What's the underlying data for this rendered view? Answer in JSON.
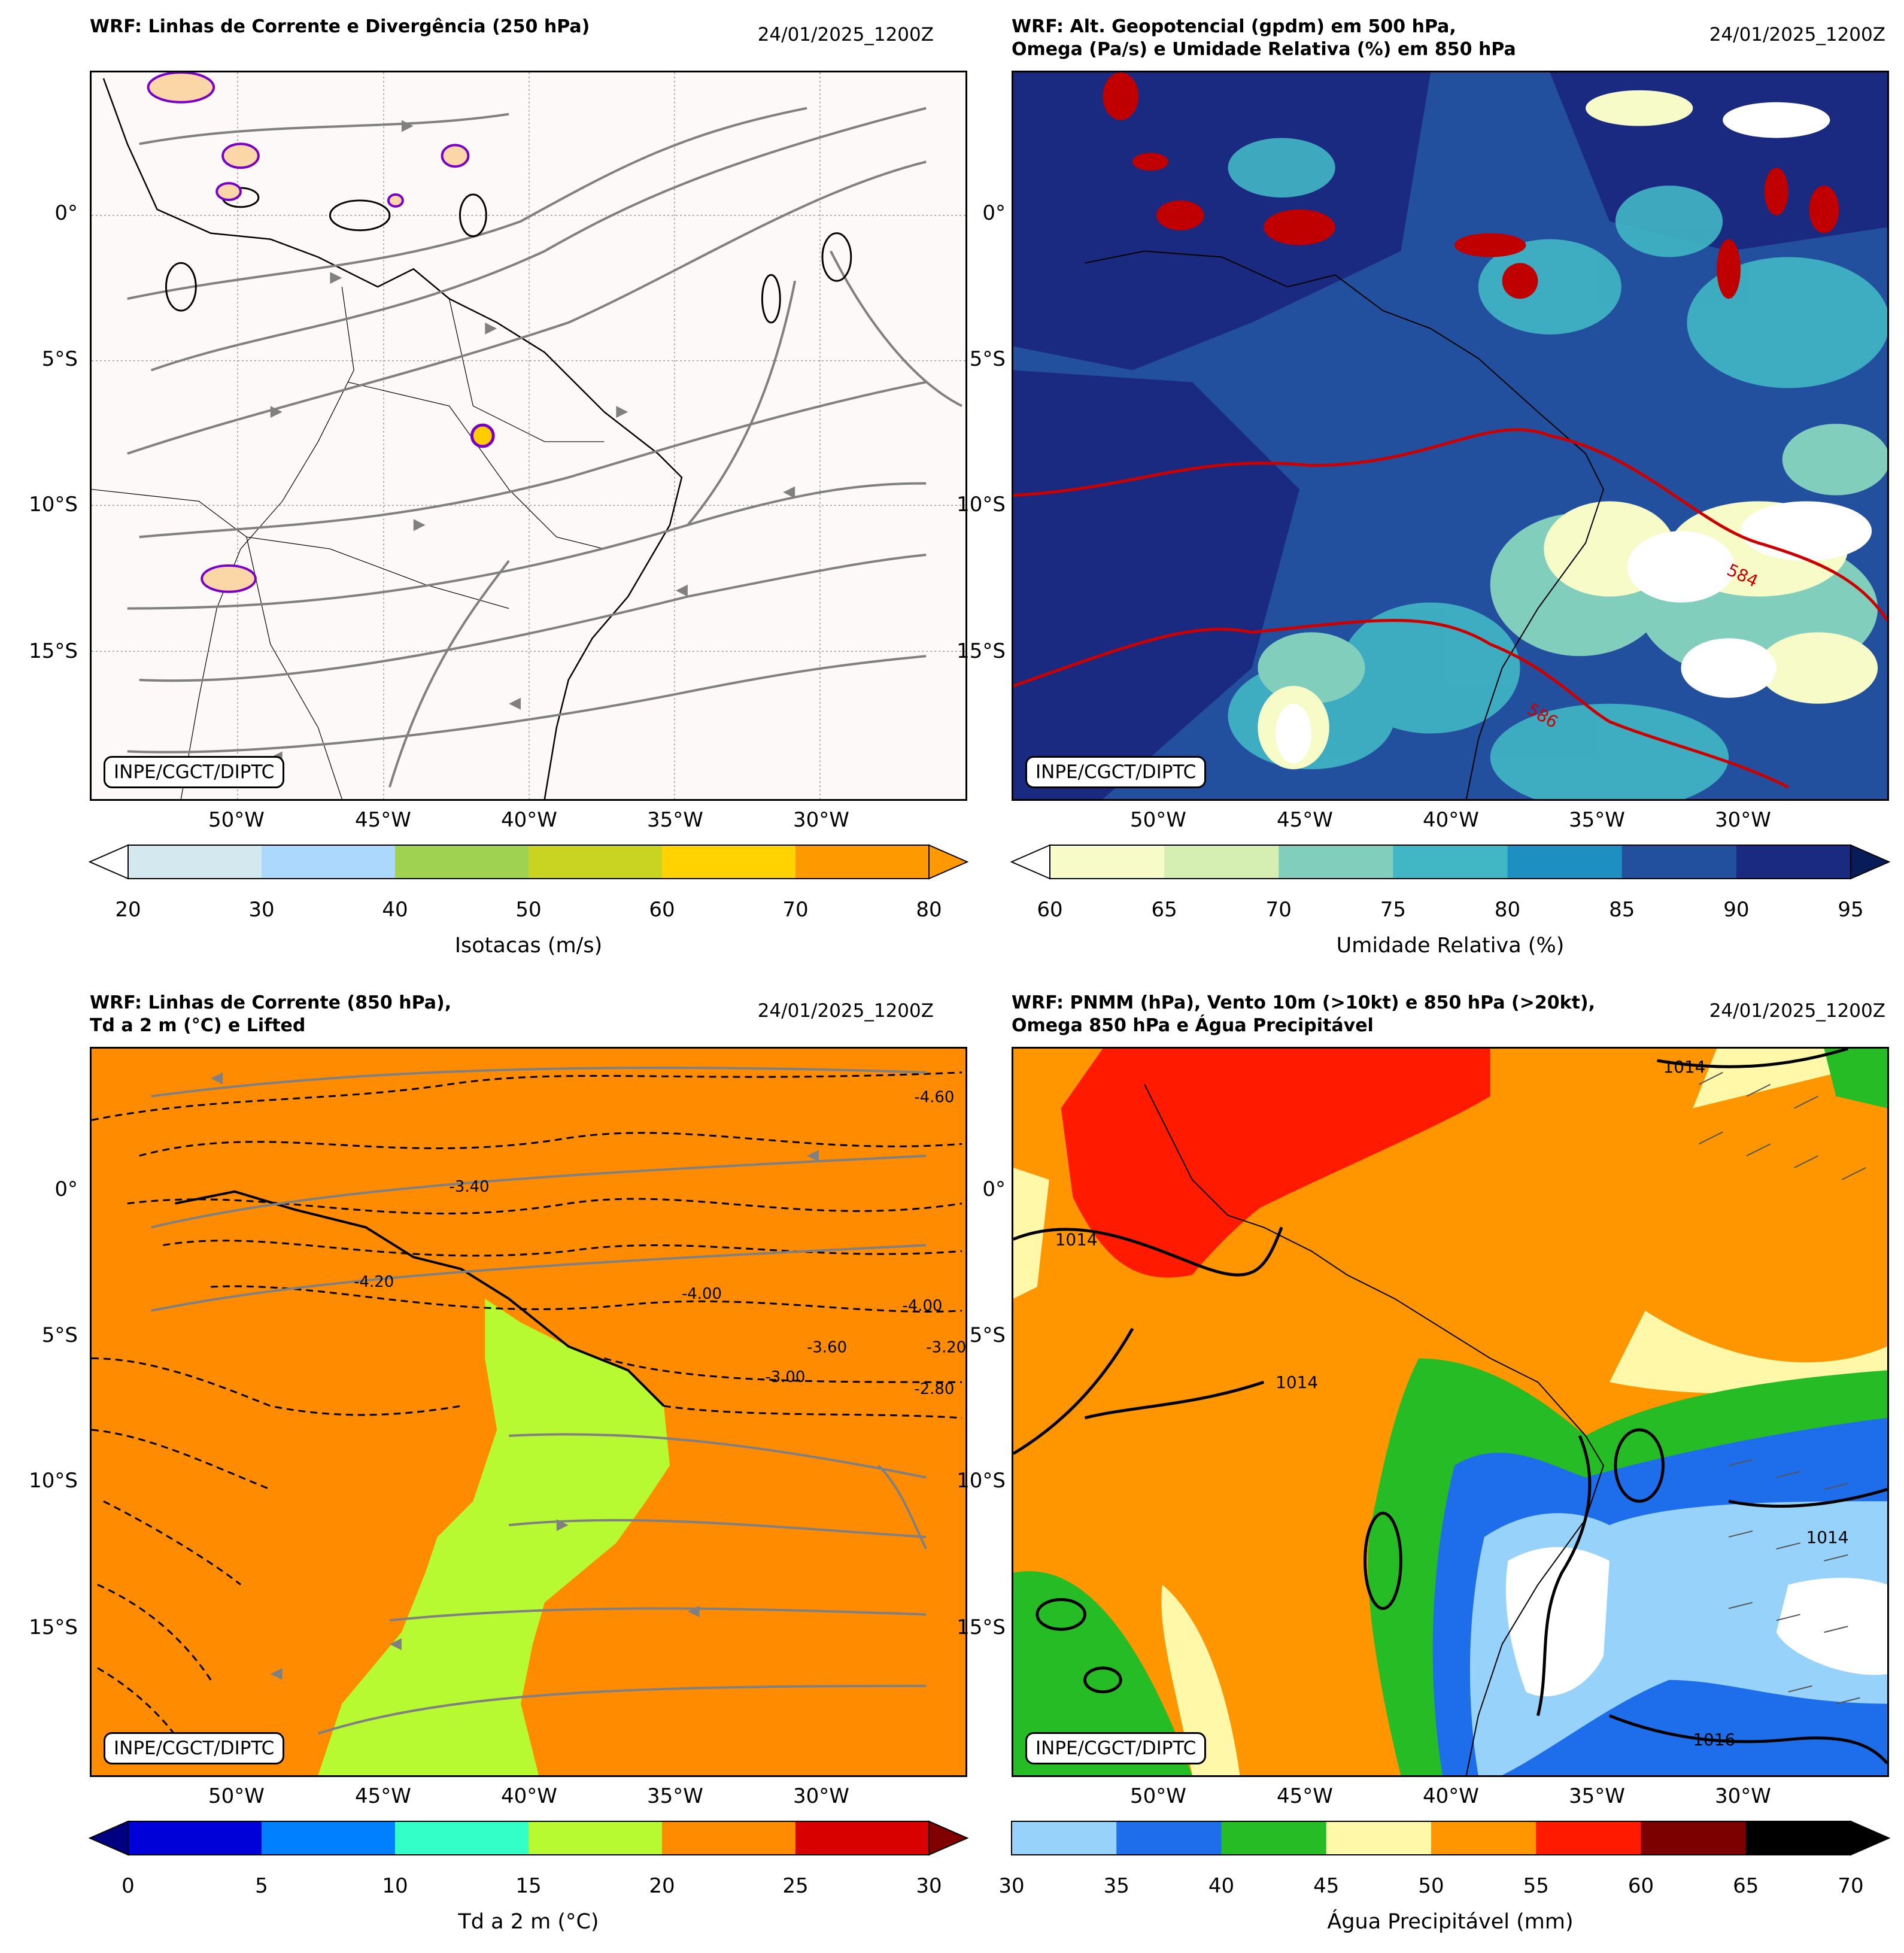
{
  "panels": [
    {
      "title": "WRF: Linhas de Corrente e Divergência (250 hPa)",
      "date": "24/01/2025_1200Z",
      "credit": "INPE/CGCT/DIPTC",
      "colorbar_label": "Isotacas (m/s)",
      "colorbar_ticks": [
        "20",
        "30",
        "40",
        "50",
        "60",
        "70",
        "80"
      ],
      "colors": [
        "#d3e9ef",
        "#add8fd",
        "#9fd250",
        "#c9d321",
        "#ffd200",
        "#ff9900"
      ],
      "extend_low": "#ffffff",
      "extend_high": "#ff9900",
      "background": "#fdf9f8"
    },
    {
      "title": "WRF: Alt. Geopotencial (gpdm) em 500 hPa,\nOmega (Pa/s) e Umidade Relativa (%) em 850 hPa",
      "date": "24/01/2025_1200Z",
      "credit": "INPE/CGCT/DIPTC",
      "colorbar_label": "Umidade Relativa (%)",
      "colorbar_ticks": [
        "60",
        "65",
        "70",
        "75",
        "80",
        "85",
        "90",
        "95"
      ],
      "colors": [
        "#f7fbc8",
        "#d5efb3",
        "#80cebb",
        "#41b6c4",
        "#1d8fc0",
        "#22509e",
        "#1a2a80"
      ],
      "extend_low": "#ffffff",
      "extend_high": "#081d58",
      "contour_labels": [
        "584",
        "586"
      ],
      "background": "#22509e"
    },
    {
      "title": "WRF: Linhas de Corrente (850 hPa),\nTd a 2 m (°C) e Lifted",
      "date": "24/01/2025_1200Z",
      "credit": "INPE/CGCT/DIPTC",
      "colorbar_label": "Td a 2 m (°C)",
      "colorbar_ticks": [
        "0",
        "5",
        "10",
        "15",
        "20",
        "25",
        "30"
      ],
      "colors": [
        "#0000d9",
        "#0080ff",
        "#33ffc8",
        "#b8fa32",
        "#ff8c00",
        "#d90000"
      ],
      "extend_low": "#000080",
      "extend_high": "#800000",
      "contour_labels": [
        "-4.60",
        "-3.40",
        "-4.20",
        "-4.00",
        "-3.00",
        "-3.60",
        "-4.00",
        "-3.20",
        "-2.80"
      ],
      "background": "#ff8c00"
    },
    {
      "title": "WRF: PNMM (hPa), Vento 10m (>10kt) e 850 hPa (>20kt),\nOmega 850 hPa e Água Precipitável",
      "date": "24/01/2025_1200Z",
      "credit": "INPE/CGCT/DIPTC",
      "colorbar_label": "Água Precipitável (mm)",
      "colorbar_ticks": [
        "30",
        "35",
        "40",
        "45",
        "50",
        "55",
        "60",
        "65",
        "70"
      ],
      "colors": [
        "#96d2fa",
        "#1e6eeb",
        "#26bc26",
        "#fff8a8",
        "#ff9600",
        "#ff1a00",
        "#7d0000",
        "#000000"
      ],
      "extend_high": "#000000",
      "contour_labels": [
        "1014",
        "1014",
        "1014",
        "1016",
        "1014"
      ],
      "background": "#ff9600"
    }
  ],
  "axes": {
    "lat_labels": [
      "0°",
      "5°S",
      "10°S",
      "15°S"
    ],
    "lon_labels": [
      "50°W",
      "45°W",
      "40°W",
      "35°W",
      "30°W"
    ]
  },
  "chart_data": [
    {
      "type": "heatmap",
      "title": "WRF: Linhas de Corrente e Divergência (250 hPa)",
      "variable": "Isotacas (m/s)",
      "levels": [
        20,
        30,
        40,
        50,
        60,
        70,
        80
      ],
      "latitudes": [
        "0°",
        "5°S",
        "10°S",
        "15°S"
      ],
      "longitudes": [
        "50°W",
        "45°W",
        "40°W",
        "35°W",
        "30°W"
      ]
    },
    {
      "type": "heatmap",
      "title": "WRF: Alt. Geopotencial (gpdm) em 500 hPa, Omega (Pa/s) e Umidade Relativa (%) em 850 hPa",
      "variable": "Umidade Relativa (%)",
      "levels": [
        60,
        65,
        70,
        75,
        80,
        85,
        90,
        95
      ],
      "contours": [
        584,
        586
      ]
    },
    {
      "type": "heatmap",
      "title": "WRF: Linhas de Corrente (850 hPa), Td a 2 m (°C) e Lifted",
      "variable": "Td a 2 m (°C)",
      "levels": [
        0,
        5,
        10,
        15,
        20,
        25,
        30
      ]
    },
    {
      "type": "heatmap",
      "title": "WRF: PNMM (hPa), Vento 10m (>10kt) e 850 hPa (>20kt), Omega 850 hPa e Água Precipitável",
      "variable": "Água Precipitável (mm)",
      "levels": [
        30,
        35,
        40,
        45,
        50,
        55,
        60,
        65,
        70
      ],
      "contours": [
        1014,
        1016
      ]
    }
  ]
}
